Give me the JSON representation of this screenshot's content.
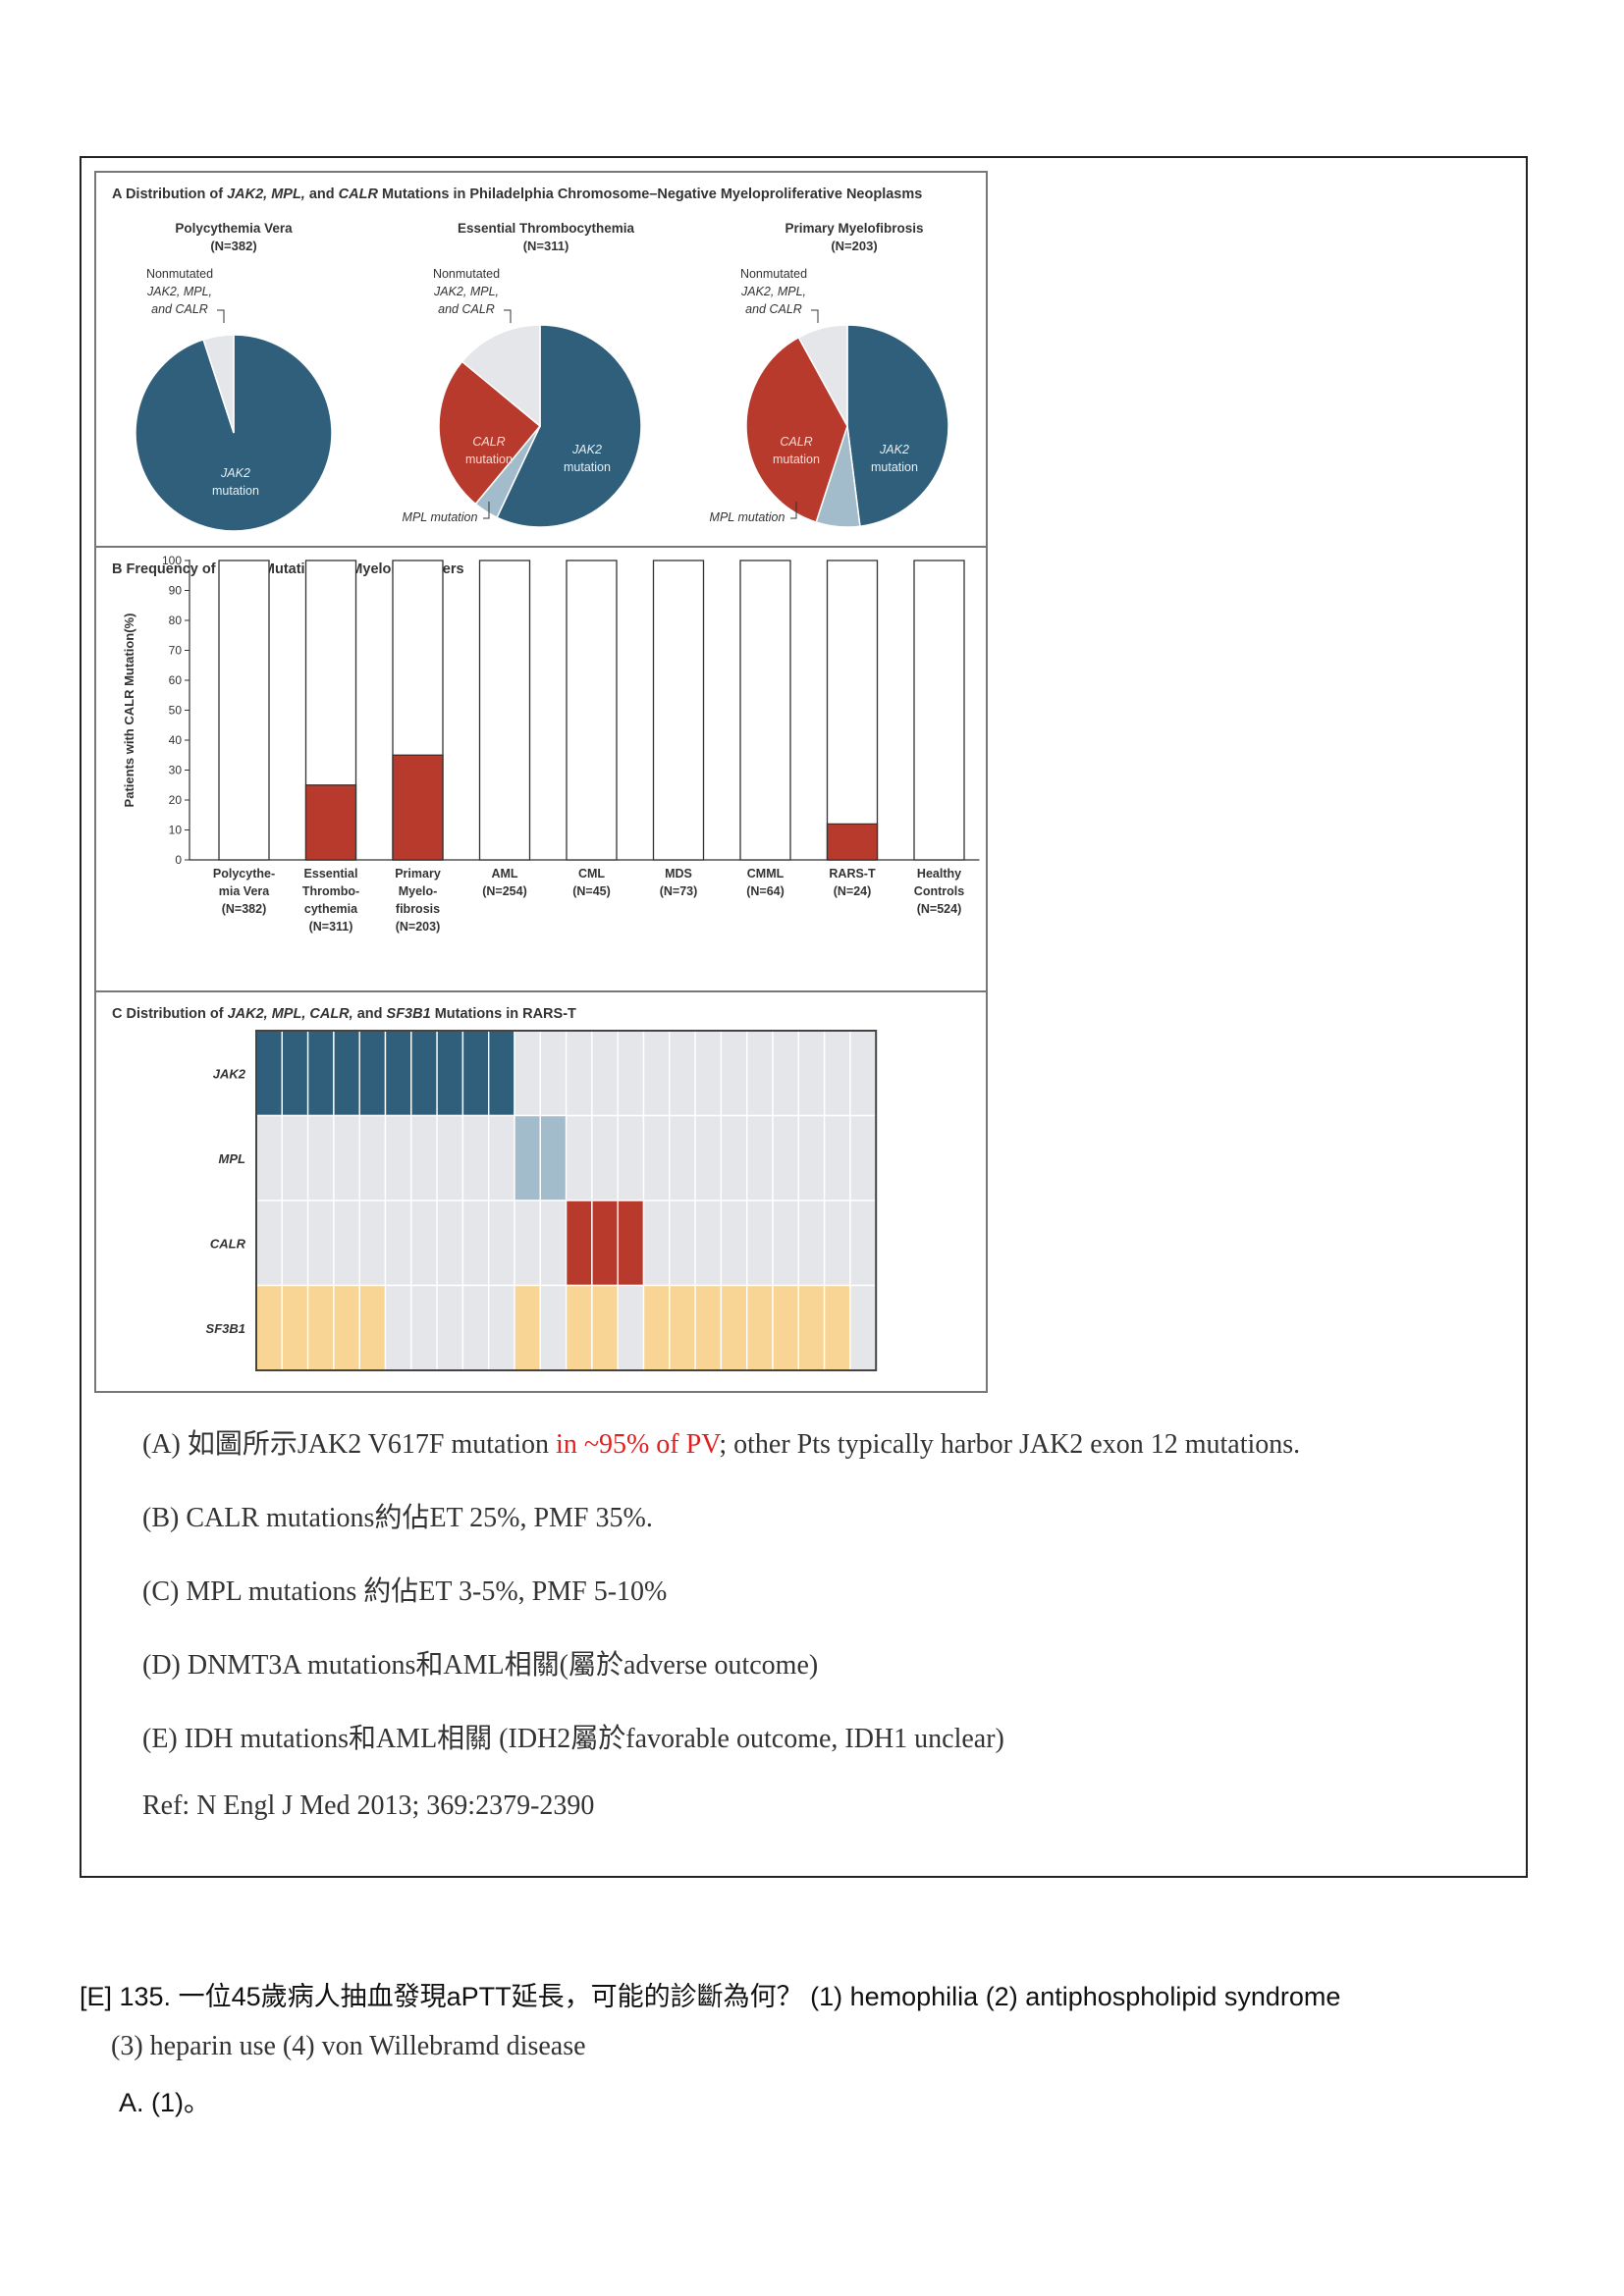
{
  "figure": {
    "panel_a": {
      "title_parts": [
        "A  Distribution of ",
        "JAK2, MPL,",
        " and ",
        "CALR",
        " Mutations in Philadelphia Chromosome–Negative Myeloproliferative Neoplasms"
      ],
      "pies": [
        {
          "name": "Polycythemia Vera",
          "n": "(N=382)",
          "nonmutated_label": [
            "Nonmutated",
            "JAK2, MPL,",
            "and CALR"
          ],
          "jak2_label": [
            "JAK2",
            "mutation"
          ],
          "calr_label": [
            "",
            ""
          ],
          "mpl_label": ""
        },
        {
          "name": "Essential Thrombocythemia",
          "n": "(N=311)",
          "nonmutated_label": [
            "Nonmutated",
            "JAK2, MPL,",
            "and CALR"
          ],
          "jak2_label": [
            "JAK2",
            "mutation"
          ],
          "calr_label": [
            "CALR",
            "mutation"
          ],
          "mpl_label": "MPL mutation"
        },
        {
          "name": "Primary Myelofibrosis",
          "n": "(N=203)",
          "nonmutated_label": [
            "Nonmutated",
            "JAK2, MPL,",
            "and CALR"
          ],
          "jak2_label": [
            "JAK2",
            "mutation"
          ],
          "calr_label": [
            "CALR",
            "mutation"
          ],
          "mpl_label": "MPL mutation"
        }
      ],
      "colors": {
        "jak2": "#2f5f7b",
        "calr": "#b83a2c",
        "mpl": "#a3bccb",
        "nonmutated": "#e4e6ea"
      }
    },
    "panel_b": {
      "title_parts": [
        "B  Frequency of ",
        "CALR",
        " Mutations in Myeloid Cancers"
      ]
    },
    "panel_c": {
      "title_parts": [
        "C  Distribution of ",
        "JAK2, MPL, CALR,",
        " and ",
        "SF3B1",
        " Mutations in RARS-T"
      ],
      "genes": [
        "JAK2",
        "MPL",
        "CALR",
        "SF3B1"
      ],
      "columns": 24,
      "mutated": {
        "JAK2": [
          1,
          1,
          1,
          1,
          1,
          1,
          1,
          1,
          1,
          1,
          0,
          0,
          0,
          0,
          0,
          0,
          0,
          0,
          0,
          0,
          0,
          0,
          0,
          0
        ],
        "MPL": [
          0,
          0,
          0,
          0,
          0,
          0,
          0,
          0,
          0,
          0,
          1,
          1,
          0,
          0,
          0,
          0,
          0,
          0,
          0,
          0,
          0,
          0,
          0,
          0
        ],
        "CALR": [
          0,
          0,
          0,
          0,
          0,
          0,
          0,
          0,
          0,
          0,
          0,
          0,
          1,
          1,
          1,
          0,
          0,
          0,
          0,
          0,
          0,
          0,
          0,
          0
        ],
        "SF3B1": [
          1,
          1,
          1,
          1,
          1,
          0,
          0,
          0,
          0,
          0,
          1,
          0,
          1,
          1,
          0,
          1,
          1,
          1,
          1,
          1,
          1,
          1,
          1,
          0
        ]
      },
      "colors": {
        "JAK2": "#2f5f7b",
        "MPL": "#a3bccb",
        "CALR": "#b83a2c",
        "SF3B1": "#f8d594",
        "empty": "#e4e6ea"
      }
    }
  },
  "chart_data": {
    "type": "bar",
    "title": "Frequency of CALR Mutations in Myeloid Cancers",
    "ylabel": "Patients with CALR Mutation(%)",
    "ylim": [
      0,
      100
    ],
    "yticks": [
      0,
      10,
      20,
      30,
      40,
      50,
      60,
      70,
      80,
      90,
      100
    ],
    "categories": [
      [
        "Polycythe-",
        "mia Vera",
        "(N=382)"
      ],
      [
        "Essential",
        "Thrombo-",
        "cythemia",
        "(N=311)"
      ],
      [
        "Primary",
        "Myelo-",
        "fibrosis",
        "(N=203)"
      ],
      [
        "AML",
        "(N=254)"
      ],
      [
        "CML",
        "(N=45)"
      ],
      [
        "MDS",
        "(N=73)"
      ],
      [
        "CMML",
        "(N=64)"
      ],
      [
        "RARS-T",
        "(N=24)"
      ],
      [
        "Healthy",
        "Controls",
        "(N=524)"
      ]
    ],
    "values": [
      0,
      25,
      35,
      0,
      0,
      0,
      0,
      12,
      0
    ],
    "colors": {
      "bar": "#b83a2c",
      "outline": "#333333"
    }
  },
  "explanations": {
    "a_pre": "(A) 如圖所示JAK2 V617F mutation ",
    "a_red": "in ~95% of PV",
    "a_post": "; other Pts typically harbor JAK2 exon 12 mutations.",
    "b": "(B) CALR mutations約佔ET 25%, PMF 35%.",
    "c": "(C) MPL mutations 約佔ET 3-5%, PMF 5-10%",
    "d": "(D) DNMT3A mutations和AML相關(屬於adverse outcome)",
    "e": "(E) IDH mutations和AML相關 (IDH2屬於favorable outcome, IDH1 unclear)",
    "ref": "Ref: N Engl J Med 2013; 369:2379-2390"
  },
  "question": {
    "line1": "[E] 135. 一位45歲病人抽血發現aPTT延長，可能的診斷為何？ (1) hemophilia (2) antiphospholipid syndrome",
    "line2": "(3) heparin use (4) von Willebramd disease",
    "option_a": "A. (1)。"
  }
}
